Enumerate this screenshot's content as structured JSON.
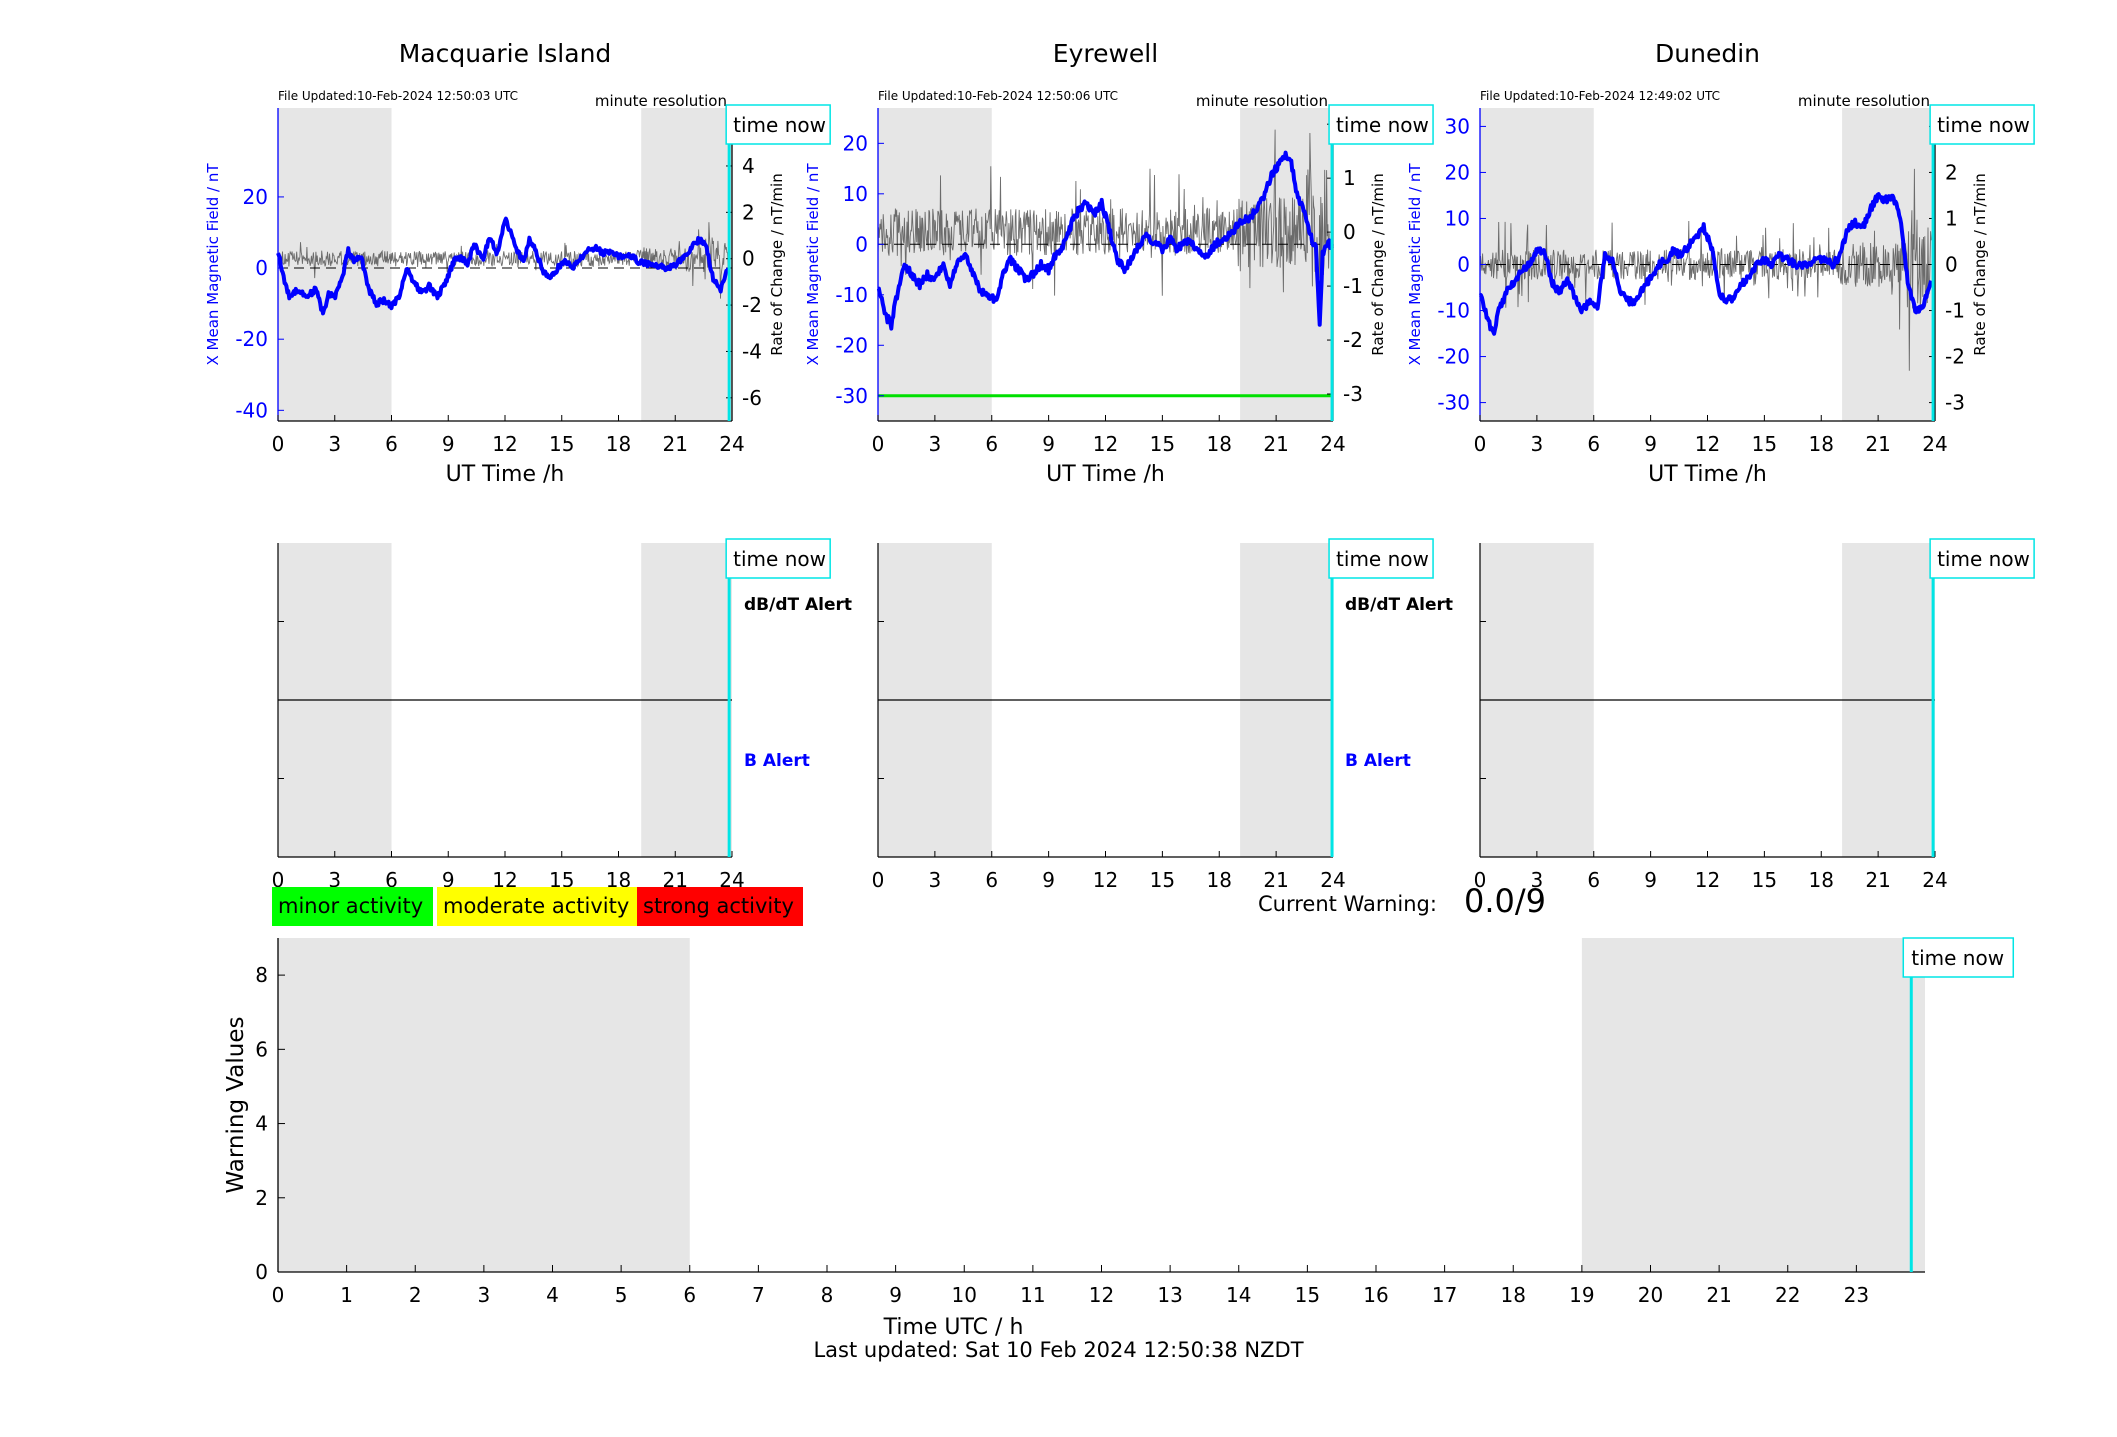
{
  "stations": [
    {
      "name": "Macquarie Island",
      "file_updated": "File Updated:10-Feb-2024 12:50:03 UTC",
      "resolution": "minute resolution",
      "ylabel_left": "X Mean Magnetic Field / nT",
      "ylabel_right": "Rate of Change / nT/min",
      "xlabel": "UT Time /h",
      "xticks": [
        0,
        3,
        6,
        9,
        12,
        15,
        18,
        21,
        24
      ],
      "ylim_left": [
        -43,
        45
      ],
      "yticks_left": [
        -40,
        -20,
        0,
        20
      ],
      "ylim_right": [
        -7,
        6.5
      ],
      "yticks_right": [
        -6,
        -4,
        -2,
        0,
        2,
        4,
        6
      ],
      "night_spans": [
        [
          0,
          6
        ],
        [
          19.2,
          24
        ]
      ],
      "time_now": 23.85,
      "field_series": [
        [
          0,
          5
        ],
        [
          0.3,
          -3
        ],
        [
          0.6,
          -8
        ],
        [
          1,
          -6
        ],
        [
          1.5,
          -8
        ],
        [
          2,
          -6
        ],
        [
          2.4,
          -13
        ],
        [
          2.7,
          -7
        ],
        [
          3,
          -8
        ],
        [
          3.4,
          -3
        ],
        [
          3.7,
          5
        ],
        [
          4,
          2
        ],
        [
          4.4,
          3
        ],
        [
          4.8,
          -6
        ],
        [
          5.2,
          -10
        ],
        [
          5.6,
          -9
        ],
        [
          6,
          -11
        ],
        [
          6.4,
          -8
        ],
        [
          6.8,
          0
        ],
        [
          7.2,
          -4
        ],
        [
          7.6,
          -7
        ],
        [
          8,
          -5
        ],
        [
          8.4,
          -8
        ],
        [
          8.8,
          -5
        ],
        [
          9.3,
          2
        ],
        [
          9.7,
          3
        ],
        [
          10,
          1
        ],
        [
          10.4,
          7
        ],
        [
          10.8,
          2
        ],
        [
          11.2,
          9
        ],
        [
          11.6,
          4
        ],
        [
          12,
          14
        ],
        [
          12.3,
          10
        ],
        [
          12.6,
          5
        ],
        [
          13,
          2
        ],
        [
          13.3,
          8
        ],
        [
          13.7,
          4
        ],
        [
          14,
          -1
        ],
        [
          14.4,
          -3
        ],
        [
          14.8,
          0
        ],
        [
          15.2,
          2
        ],
        [
          15.6,
          0
        ],
        [
          16,
          3
        ],
        [
          16.4,
          5
        ],
        [
          16.8,
          6
        ],
        [
          17.2,
          4
        ],
        [
          17.6,
          5
        ],
        [
          18,
          3
        ],
        [
          18.5,
          4
        ],
        [
          19,
          2
        ],
        [
          19.5,
          1
        ],
        [
          20,
          1
        ],
        [
          20.5,
          0
        ],
        [
          21,
          1
        ],
        [
          21.5,
          3
        ],
        [
          22,
          7
        ],
        [
          22.3,
          8
        ],
        [
          22.6,
          7
        ],
        [
          23,
          -3
        ],
        [
          23.4,
          -6
        ],
        [
          23.8,
          0
        ]
      ]
    },
    {
      "name": "Eyrewell",
      "file_updated": "File Updated:10-Feb-2024 12:50:06 UTC",
      "resolution": "minute resolution",
      "ylabel_left": "X Mean Magnetic Field / nT",
      "ylabel_right": "Rate of Change / nT/min",
      "xlabel": "UT Time /h",
      "xticks": [
        0,
        3,
        6,
        9,
        12,
        15,
        18,
        21,
        24
      ],
      "ylim_left": [
        -35,
        27
      ],
      "yticks_left": [
        -30,
        -20,
        -10,
        0,
        10,
        20
      ],
      "ylim_right": [
        -3.5,
        2.3
      ],
      "yticks_right": [
        -3,
        -2,
        -1,
        0,
        1,
        2
      ],
      "night_spans": [
        [
          0,
          6
        ],
        [
          19.1,
          24
        ]
      ],
      "time_now": 23.95,
      "threshold_line": -30,
      "field_series": [
        [
          0,
          -8
        ],
        [
          0.4,
          -14
        ],
        [
          0.7,
          -16
        ],
        [
          1,
          -10
        ],
        [
          1.4,
          -4
        ],
        [
          1.8,
          -6
        ],
        [
          2.2,
          -8
        ],
        [
          2.6,
          -6
        ],
        [
          3,
          -7
        ],
        [
          3.4,
          -4
        ],
        [
          3.8,
          -8
        ],
        [
          4.2,
          -3
        ],
        [
          4.6,
          -2
        ],
        [
          5,
          -6
        ],
        [
          5.4,
          -9
        ],
        [
          5.8,
          -10
        ],
        [
          6.2,
          -11
        ],
        [
          6.6,
          -6
        ],
        [
          7,
          -3
        ],
        [
          7.4,
          -5
        ],
        [
          7.8,
          -7
        ],
        [
          8.2,
          -6
        ],
        [
          8.6,
          -4
        ],
        [
          9,
          -5
        ],
        [
          9.4,
          -2
        ],
        [
          9.8,
          0
        ],
        [
          10.2,
          4
        ],
        [
          10.6,
          7
        ],
        [
          11,
          8
        ],
        [
          11.4,
          6
        ],
        [
          11.8,
          8
        ],
        [
          12.2,
          3
        ],
        [
          12.6,
          -3
        ],
        [
          13,
          -5
        ],
        [
          13.4,
          -3
        ],
        [
          13.8,
          0
        ],
        [
          14.2,
          2
        ],
        [
          14.6,
          0
        ],
        [
          15,
          -1
        ],
        [
          15.4,
          1
        ],
        [
          15.8,
          -1
        ],
        [
          16.2,
          1
        ],
        [
          16.6,
          0
        ],
        [
          17,
          -2
        ],
        [
          17.4,
          -2
        ],
        [
          17.8,
          0
        ],
        [
          18.2,
          1
        ],
        [
          18.6,
          2
        ],
        [
          19,
          4
        ],
        [
          19.5,
          5
        ],
        [
          20,
          7
        ],
        [
          20.4,
          10
        ],
        [
          20.8,
          14
        ],
        [
          21.2,
          16
        ],
        [
          21.5,
          18
        ],
        [
          21.8,
          16
        ],
        [
          22.1,
          10
        ],
        [
          22.5,
          6
        ],
        [
          22.8,
          2
        ],
        [
          23.1,
          -1
        ],
        [
          23.3,
          -16
        ],
        [
          23.45,
          -2
        ],
        [
          23.6,
          0
        ],
        [
          24,
          0
        ]
      ]
    },
    {
      "name": "Dunedin",
      "file_updated": "File Updated:10-Feb-2024 12:49:02 UTC",
      "resolution": "minute resolution",
      "ylabel_left": "X Mean Magnetic Field / nT",
      "ylabel_right": "Rate of Change / nT/min",
      "xlabel": "UT Time /h",
      "xticks": [
        0,
        3,
        6,
        9,
        12,
        15,
        18,
        21,
        24
      ],
      "ylim_left": [
        -34,
        34
      ],
      "yticks_left": [
        -30,
        -20,
        -10,
        0,
        10,
        20,
        30
      ],
      "ylim_right": [
        -3.4,
        3.4
      ],
      "yticks_right": [
        -3,
        -2,
        -1,
        0,
        1,
        2,
        3
      ],
      "night_spans": [
        [
          0,
          6
        ],
        [
          19.1,
          24
        ]
      ],
      "time_now": 23.9,
      "field_series": [
        [
          0,
          -6
        ],
        [
          0.4,
          -12
        ],
        [
          0.7,
          -15
        ],
        [
          1,
          -10
        ],
        [
          1.4,
          -6
        ],
        [
          1.8,
          -4
        ],
        [
          2.2,
          -1
        ],
        [
          2.6,
          0
        ],
        [
          3,
          3
        ],
        [
          3.4,
          3
        ],
        [
          3.8,
          -4
        ],
        [
          4.2,
          -6
        ],
        [
          4.6,
          -3
        ],
        [
          5,
          -7
        ],
        [
          5.4,
          -10
        ],
        [
          5.8,
          -8
        ],
        [
          6.2,
          -9
        ],
        [
          6.6,
          2
        ],
        [
          7,
          1
        ],
        [
          7.4,
          -6
        ],
        [
          7.8,
          -8
        ],
        [
          8.2,
          -8
        ],
        [
          8.6,
          -5
        ],
        [
          9,
          -3
        ],
        [
          9.4,
          0
        ],
        [
          9.8,
          1
        ],
        [
          10.2,
          3
        ],
        [
          10.6,
          2
        ],
        [
          11,
          4
        ],
        [
          11.4,
          6
        ],
        [
          11.8,
          8
        ],
        [
          12.2,
          4
        ],
        [
          12.6,
          -6
        ],
        [
          13,
          -8
        ],
        [
          13.4,
          -7
        ],
        [
          13.8,
          -4
        ],
        [
          14.2,
          -3
        ],
        [
          14.6,
          0
        ],
        [
          15,
          1
        ],
        [
          15.4,
          0
        ],
        [
          15.8,
          2
        ],
        [
          16.2,
          1
        ],
        [
          16.6,
          0
        ],
        [
          17,
          0
        ],
        [
          17.4,
          0
        ],
        [
          17.8,
          1
        ],
        [
          18.2,
          1
        ],
        [
          18.6,
          0
        ],
        [
          19,
          2
        ],
        [
          19.4,
          8
        ],
        [
          19.8,
          9
        ],
        [
          20.2,
          8
        ],
        [
          20.6,
          12
        ],
        [
          21,
          15
        ],
        [
          21.4,
          14
        ],
        [
          21.8,
          15
        ],
        [
          22.2,
          9
        ],
        [
          22.6,
          -5
        ],
        [
          23,
          -10
        ],
        [
          23.4,
          -9
        ],
        [
          23.8,
          -3
        ]
      ]
    }
  ],
  "alerts": {
    "time_now_label": "time now",
    "dbdt_label": "dB/dT Alert",
    "b_label": "B Alert",
    "xticks": [
      0,
      3,
      6,
      9,
      12,
      15,
      18,
      21,
      24
    ]
  },
  "legend": {
    "minor": "minor activity",
    "moderate": "moderate activity",
    "strong": "strong activity",
    "minor_color": "#00ff00",
    "moderate_color": "#ffff00",
    "strong_color": "#ff0000"
  },
  "current_warning": {
    "label": "Current Warning:",
    "value": "0.0/9"
  },
  "warning_chart": {
    "type": "bar",
    "ylabel": "Warning Values",
    "xlabel": "Time UTC / h",
    "xlim": [
      0,
      24
    ],
    "ylim": [
      0,
      9
    ],
    "yticks": [
      0,
      2,
      4,
      6,
      8
    ],
    "xticks": [
      0,
      1,
      2,
      3,
      4,
      5,
      6,
      7,
      8,
      9,
      10,
      11,
      12,
      13,
      14,
      15,
      16,
      17,
      18,
      19,
      20,
      21,
      22,
      23
    ],
    "night_spans": [
      [
        0,
        6
      ],
      [
        19,
        24
      ]
    ],
    "time_now": 23.8,
    "values": []
  },
  "colors": {
    "field": "#0000ff",
    "rate": "#555555",
    "night": "#e6e6e6",
    "time_now": "#00e5e5",
    "threshold": "#00e000"
  },
  "footer": "Last updated: Sat 10 Feb 2024 12:50:38 NZDT"
}
